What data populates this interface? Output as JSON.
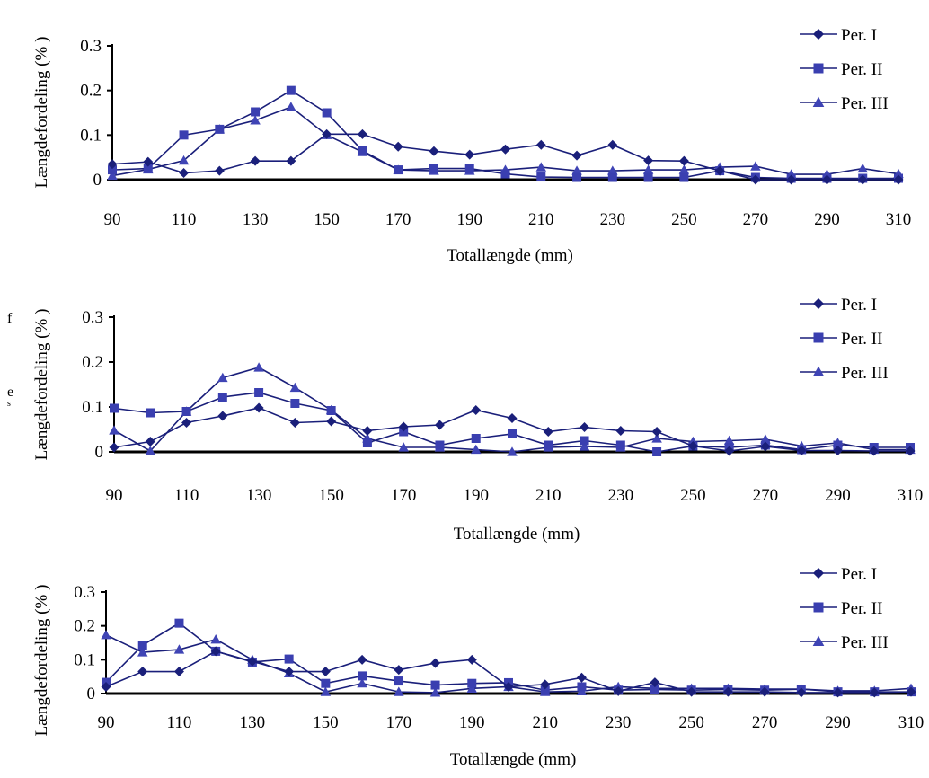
{
  "chart_data": [
    {
      "type": "line",
      "xlabel": "Totallængde (mm)",
      "ylabel": "Længdefordeling (% )",
      "ylim": [
        0,
        0.3
      ],
      "yticks": [
        "0",
        "0.1",
        "0.2",
        "0.3"
      ],
      "x": [
        90,
        100,
        110,
        120,
        130,
        140,
        150,
        160,
        170,
        180,
        190,
        200,
        210,
        220,
        230,
        240,
        250,
        260,
        270,
        280,
        290,
        300,
        310
      ],
      "xtick_labels": [
        "90",
        "110",
        "130",
        "150",
        "170",
        "190",
        "210",
        "230",
        "250",
        "270",
        "290",
        "310"
      ],
      "legend": "right",
      "series": [
        {
          "name": "Per. I",
          "marker": "diamond",
          "values": [
            0.035,
            0.04,
            0.015,
            0.02,
            0.042,
            0.042,
            0.102,
            0.102,
            0.074,
            0.064,
            0.056,
            0.068,
            0.078,
            0.054,
            0.078,
            0.043,
            0.042,
            0.02,
            0.0,
            0.0,
            0.0,
            0.0,
            0.0
          ]
        },
        {
          "name": "Per. II",
          "marker": "square",
          "values": [
            0.022,
            0.025,
            0.1,
            0.113,
            0.152,
            0.2,
            0.15,
            0.065,
            0.022,
            0.025,
            0.025,
            0.013,
            0.006,
            0.005,
            0.005,
            0.005,
            0.005,
            0.02,
            0.005,
            0.003,
            0.003,
            0.003,
            0.003
          ]
        },
        {
          "name": "Per. III",
          "marker": "triangle",
          "values": [
            0.009,
            0.023,
            0.043,
            0.113,
            0.133,
            0.163,
            0.1,
            0.062,
            0.022,
            0.02,
            0.02,
            0.022,
            0.028,
            0.02,
            0.02,
            0.022,
            0.022,
            0.028,
            0.03,
            0.012,
            0.012,
            0.025,
            0.013
          ]
        }
      ]
    },
    {
      "type": "line",
      "xlabel": "Totallængde (mm)",
      "ylabel": "Længdefordeling (% )",
      "ylim": [
        0,
        0.3
      ],
      "yticks": [
        "0",
        "0.1",
        "0.2",
        "0.3"
      ],
      "x": [
        90,
        100,
        110,
        120,
        130,
        140,
        150,
        160,
        170,
        180,
        190,
        200,
        210,
        220,
        230,
        240,
        250,
        260,
        270,
        280,
        290,
        300,
        310
      ],
      "xtick_labels": [
        "90",
        "110",
        "130",
        "150",
        "170",
        "190",
        "210",
        "230",
        "250",
        "270",
        "290",
        "310"
      ],
      "legend": "right",
      "series": [
        {
          "name": "Per. I",
          "marker": "diamond",
          "values": [
            0.01,
            0.023,
            0.065,
            0.08,
            0.098,
            0.065,
            0.068,
            0.047,
            0.056,
            0.06,
            0.093,
            0.075,
            0.045,
            0.055,
            0.047,
            0.045,
            0.013,
            0.002,
            0.012,
            0.003,
            0.003,
            0.002,
            0.002
          ]
        },
        {
          "name": "Per. II",
          "marker": "square",
          "values": [
            0.097,
            0.087,
            0.09,
            0.122,
            0.132,
            0.108,
            0.092,
            0.02,
            0.045,
            0.015,
            0.03,
            0.04,
            0.015,
            0.025,
            0.015,
            0.0,
            0.013,
            0.01,
            0.015,
            0.005,
            0.015,
            0.01,
            0.01
          ]
        },
        {
          "name": "Per. III",
          "marker": "triangle",
          "values": [
            0.048,
            0.002,
            0.09,
            0.165,
            0.188,
            0.143,
            0.093,
            0.03,
            0.01,
            0.01,
            0.005,
            0.0,
            0.01,
            0.012,
            0.01,
            0.03,
            0.023,
            0.025,
            0.028,
            0.013,
            0.02,
            0.005,
            0.005
          ]
        }
      ]
    },
    {
      "type": "line",
      "xlabel": "Totallængde (mm)",
      "ylabel": "Længdefordeling (% )",
      "ylim": [
        0,
        0.3
      ],
      "yticks": [
        "0",
        "0.1",
        "0.2",
        "0.3"
      ],
      "x": [
        90,
        100,
        110,
        120,
        130,
        140,
        150,
        160,
        170,
        180,
        190,
        200,
        210,
        220,
        230,
        240,
        250,
        260,
        270,
        280,
        290,
        300,
        310
      ],
      "xtick_labels": [
        "90",
        "110",
        "130",
        "150",
        "170",
        "190",
        "210",
        "230",
        "250",
        "270",
        "290",
        "310"
      ],
      "legend": "right",
      "series": [
        {
          "name": "Per. I",
          "marker": "diamond",
          "values": [
            0.02,
            0.065,
            0.065,
            0.125,
            0.095,
            0.065,
            0.065,
            0.1,
            0.07,
            0.09,
            0.1,
            0.02,
            0.027,
            0.047,
            0.007,
            0.033,
            0.005,
            0.005,
            0.005,
            0.003,
            0.003,
            0.003,
            0.005
          ]
        },
        {
          "name": "Per. II",
          "marker": "square",
          "values": [
            0.033,
            0.143,
            0.208,
            0.125,
            0.093,
            0.102,
            0.03,
            0.052,
            0.037,
            0.025,
            0.03,
            0.032,
            0.01,
            0.02,
            0.01,
            0.012,
            0.01,
            0.012,
            0.01,
            0.013,
            0.005,
            0.005,
            0.005
          ]
        },
        {
          "name": "Per. III",
          "marker": "triangle",
          "values": [
            0.173,
            0.122,
            0.13,
            0.16,
            0.1,
            0.06,
            0.005,
            0.03,
            0.005,
            0.003,
            0.015,
            0.02,
            0.005,
            0.007,
            0.02,
            0.015,
            0.015,
            0.015,
            0.013,
            0.013,
            0.008,
            0.008,
            0.015
          ]
        }
      ]
    }
  ],
  "stray_glyphs": [
    "f",
    "e",
    "s"
  ],
  "colors": {
    "series": "#1a1f7a",
    "series2": "#3a3fa8",
    "axis": "#000000"
  }
}
